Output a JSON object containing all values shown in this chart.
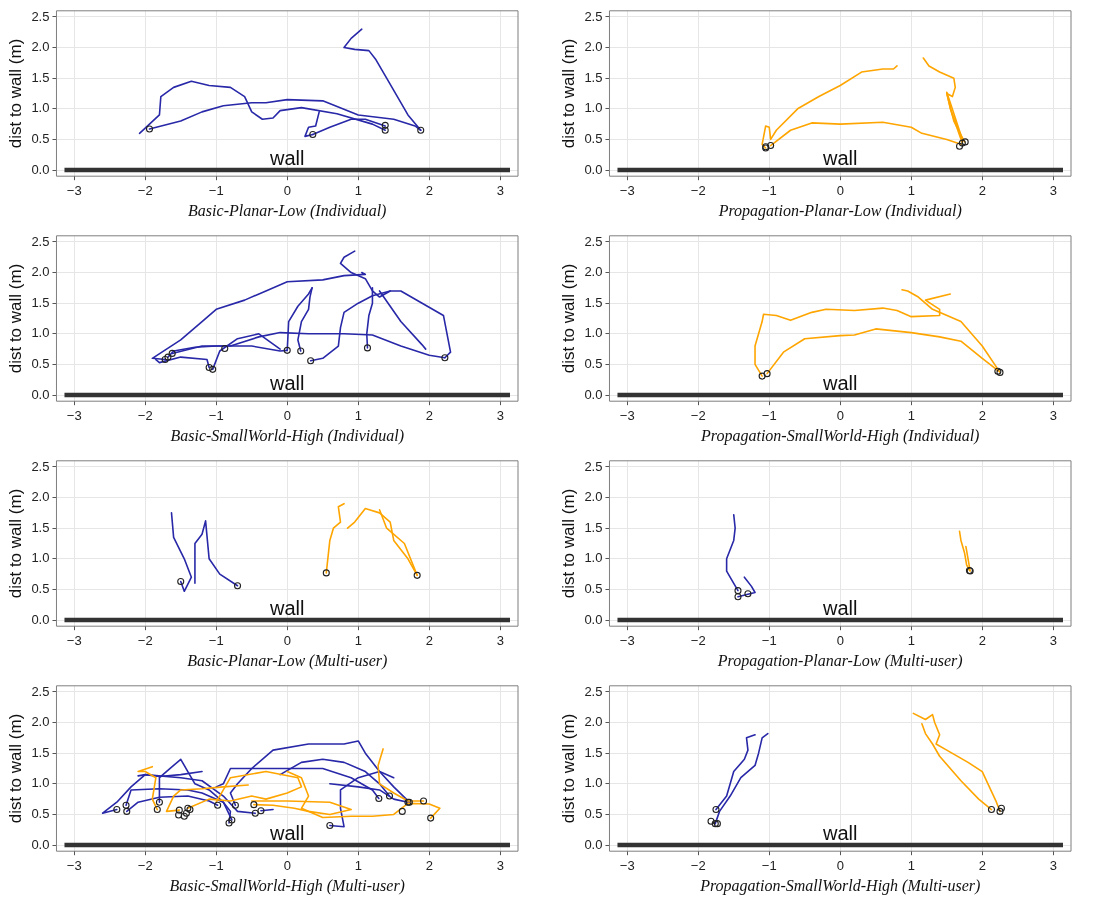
{
  "chart_data": [
    {
      "type": "line",
      "xlabel": "Basic-Planar-Low (Individual)",
      "ylabel": "dist to wall (m)",
      "xlim": [
        -3.25,
        3.25
      ],
      "ylim": [
        -0.1,
        2.6
      ],
      "xticks": [
        {
          "value": -3,
          "label": "−3"
        },
        {
          "value": -2,
          "label": "−2"
        },
        {
          "value": -1,
          "label": "−1"
        },
        0,
        1,
        2,
        3
      ],
      "yticks": [
        {
          "value": 0,
          "label": "0.0"
        },
        0.5,
        {
          "value": 1,
          "label": "1.0"
        },
        1.5,
        {
          "value": 2,
          "label": "2.0"
        },
        2.5
      ],
      "grid": true,
      "legend": false,
      "ref_lines": [
        {
          "axis": "y",
          "value": 0,
          "label": "wall",
          "color": "#333333"
        }
      ],
      "series": [
        {
          "type": "line",
          "color": "#2828a8",
          "x": [
            -2.08,
            -1.8,
            -1.78,
            -1.6,
            -1.35,
            -1.1,
            -0.8,
            -0.6,
            -0.5,
            -0.35,
            -0.2,
            -0.1,
            0.2,
            0.7,
            1.2,
            1.38
          ],
          "values": [
            0.6,
            0.9,
            1.2,
            1.35,
            1.45,
            1.38,
            1.35,
            1.2,
            0.95,
            0.83,
            0.85,
            0.97,
            1.02,
            0.92,
            0.75,
            0.65
          ]
        },
        {
          "type": "line",
          "color": "#2828a8",
          "x": [
            -1.94,
            -1.5,
            -1.2,
            -0.9,
            -0.5,
            -0.3,
            0,
            0.5,
            1.0,
            1.5,
            1.8,
            1.88
          ],
          "values": [
            0.67,
            0.8,
            0.95,
            1.05,
            1.1,
            1.1,
            1.15,
            1.13,
            0.9,
            0.83,
            0.72,
            0.65
          ]
        },
        {
          "type": "line",
          "color": "#2828a8",
          "x": [
            1.88,
            1.7,
            1.5,
            1.4,
            1.25,
            1.15,
            0.95,
            0.8,
            0.9,
            1.05
          ],
          "values": [
            0.65,
            0.9,
            1.3,
            1.5,
            1.8,
            1.95,
            1.97,
            2.0,
            2.15,
            2.3
          ]
        },
        {
          "type": "line",
          "color": "#2828a8",
          "x": [
            0.36,
            0.25,
            0.3,
            0.4,
            0.45
          ],
          "values": [
            0.58,
            0.55,
            0.7,
            0.72,
            0.95
          ]
        },
        {
          "type": "line",
          "color": "#2828a8",
          "x": [
            0.36,
            0.6,
            0.9,
            1.1,
            1.38
          ],
          "values": [
            0.58,
            0.7,
            0.83,
            0.83,
            0.72
          ]
        },
        {
          "type": "scatter",
          "color": "#222222",
          "marker": "circle",
          "x": [
            -1.94,
            0.36,
            1.38,
            1.38,
            1.88
          ],
          "values": [
            0.67,
            0.58,
            0.65,
            0.73,
            0.65
          ]
        }
      ]
    },
    {
      "type": "line",
      "xlabel": "Propagation-Planar-Low (Individual)",
      "ylabel": "dist to wall (m)",
      "xlim": [
        -3.25,
        3.25
      ],
      "ylim": [
        -0.1,
        2.6
      ],
      "xticks": [
        {
          "value": -3,
          "label": "−3"
        },
        {
          "value": -2,
          "label": "−2"
        },
        {
          "value": -1,
          "label": "−1"
        },
        0,
        1,
        2,
        3
      ],
      "yticks": [
        {
          "value": 0,
          "label": "0.0"
        },
        0.5,
        {
          "value": 1,
          "label": "1.0"
        },
        1.5,
        {
          "value": 2,
          "label": "2.0"
        },
        2.5
      ],
      "grid": true,
      "legend": false,
      "ref_lines": [
        {
          "axis": "y",
          "value": 0,
          "label": "wall",
          "color": "#333333"
        }
      ],
      "series": [
        {
          "type": "line",
          "color": "#ffa500",
          "x": [
            -1.05,
            -1.1,
            -1.05,
            -1.0,
            -0.98,
            -0.9,
            -0.6,
            -0.3,
            0,
            0.3,
            0.6,
            0.75,
            0.8
          ],
          "values": [
            0.36,
            0.42,
            0.72,
            0.7,
            0.5,
            0.65,
            1.0,
            1.2,
            1.38,
            1.6,
            1.65,
            1.65,
            1.7
          ]
        },
        {
          "type": "line",
          "color": "#ffa500",
          "x": [
            -0.98,
            -0.7,
            -0.4,
            0,
            0.6,
            1.0,
            1.15,
            1.5,
            1.7
          ],
          "values": [
            0.4,
            0.65,
            0.77,
            0.75,
            0.78,
            0.7,
            0.6,
            0.5,
            0.42
          ]
        },
        {
          "type": "line",
          "color": "#ffa500",
          "x": [
            1.75,
            1.6,
            1.5,
            1.58,
            1.62,
            1.6,
            1.4,
            1.25,
            1.17
          ],
          "values": [
            0.46,
            0.8,
            1.25,
            1.2,
            1.35,
            1.5,
            1.6,
            1.7,
            1.83
          ]
        },
        {
          "type": "line",
          "color": "#ffa500",
          "x": [
            1.72,
            1.55,
            1.5,
            1.55,
            1.72
          ],
          "values": [
            0.44,
            1.0,
            1.27,
            1.1,
            0.5
          ]
        },
        {
          "type": "scatter",
          "color": "#222222",
          "marker": "circle",
          "x": [
            -1.05,
            -1.05,
            -0.98,
            1.68,
            1.72,
            1.76
          ],
          "values": [
            0.36,
            0.38,
            0.4,
            0.39,
            0.44,
            0.46
          ]
        }
      ]
    },
    {
      "type": "line",
      "xlabel": "Basic-SmallWorld-High (Individual)",
      "ylabel": "dist to wall (m)",
      "xlim": [
        -3.25,
        3.25
      ],
      "ylim": [
        -0.1,
        2.6
      ],
      "xticks": [
        {
          "value": -3,
          "label": "−3"
        },
        {
          "value": -2,
          "label": "−2"
        },
        {
          "value": -1,
          "label": "−1"
        },
        0,
        1,
        2,
        3
      ],
      "yticks": [
        {
          "value": 0,
          "label": "0.0"
        },
        0.5,
        {
          "value": 1,
          "label": "1.0"
        },
        1.5,
        {
          "value": 2,
          "label": "2.0"
        },
        2.5
      ],
      "grid": true,
      "legend": false,
      "ref_lines": [
        {
          "axis": "y",
          "value": 0,
          "label": "wall",
          "color": "#333333"
        }
      ],
      "series": [
        {
          "type": "line",
          "color": "#2828a8",
          "x": [
            -1.72,
            -1.9,
            -1.7,
            -1.5,
            -1.2,
            -1.0,
            -0.6,
            -0.3,
            0,
            0.5,
            0.8,
            1.1,
            1.05
          ],
          "values": [
            0.58,
            0.6,
            0.75,
            0.9,
            1.2,
            1.4,
            1.55,
            1.7,
            1.85,
            1.88,
            1.95,
            1.97,
            2.0
          ]
        },
        {
          "type": "line",
          "color": "#2828a8",
          "x": [
            -1.68,
            -1.6,
            -1.3,
            -1.0,
            -0.5,
            -0.1,
            0
          ],
          "values": [
            0.62,
            0.72,
            0.78,
            0.8,
            0.8,
            0.72,
            0.73
          ]
        },
        {
          "type": "line",
          "color": "#2828a8",
          "x": [
            -1.62,
            -1.2,
            -0.8,
            -0.4,
            -0.1,
            0.3,
            0.8,
            1.2,
            1.6,
            2.0,
            2.22
          ],
          "values": [
            0.68,
            0.8,
            0.8,
            0.95,
            1.02,
            1.0,
            1.0,
            0.98,
            0.8,
            0.65,
            0.61
          ]
        },
        {
          "type": "line",
          "color": "#2828a8",
          "x": [
            -1.1,
            -1.13,
            -1.5,
            -1.8,
            -1.85
          ],
          "values": [
            0.45,
            0.58,
            0.62,
            0.53,
            0.58
          ]
        },
        {
          "type": "line",
          "color": "#2828a8",
          "x": [
            -1.05,
            -0.95,
            -0.7,
            -0.4,
            -0.1
          ],
          "values": [
            0.42,
            0.72,
            0.92,
            1.0,
            0.75
          ]
        },
        {
          "type": "line",
          "color": "#2828a8",
          "x": [
            0,
            0.02,
            0.15,
            0.3,
            0.35
          ],
          "values": [
            0.73,
            1.2,
            1.45,
            1.65,
            1.75
          ]
        },
        {
          "type": "line",
          "color": "#2828a8",
          "x": [
            0.19,
            0.15,
            0.2,
            0.3,
            0.32,
            0.35
          ],
          "values": [
            0.72,
            0.9,
            1.2,
            1.4,
            1.6,
            1.75
          ]
        },
        {
          "type": "line",
          "color": "#2828a8",
          "x": [
            0.33,
            0.5,
            0.72,
            0.75,
            0.8,
            1.0,
            1.2,
            1.45
          ],
          "values": [
            0.56,
            0.6,
            0.8,
            1.1,
            1.35,
            1.5,
            1.62,
            1.7
          ]
        },
        {
          "type": "line",
          "color": "#2828a8",
          "x": [
            1.13,
            1.12,
            1.15,
            1.2,
            1.2
          ],
          "values": [
            0.77,
            1.0,
            1.3,
            1.5,
            1.75
          ]
        },
        {
          "type": "line",
          "color": "#2828a8",
          "x": [
            2.22,
            2.3,
            2.2,
            1.9,
            1.6,
            1.45,
            1.3,
            1.2,
            1.1,
            0.9,
            0.75,
            0.8,
            0.95
          ],
          "values": [
            0.61,
            0.7,
            1.3,
            1.5,
            1.7,
            1.7,
            1.6,
            1.7,
            1.9,
            2.0,
            2.15,
            2.25,
            2.35
          ]
        },
        {
          "type": "line",
          "color": "#2828a8",
          "x": [
            1.3,
            1.6,
            1.9,
            1.95
          ],
          "values": [
            1.7,
            1.2,
            0.82,
            0.75
          ]
        },
        {
          "type": "scatter",
          "color": "#222222",
          "marker": "circle",
          "x": [
            -1.72,
            -1.68,
            -1.62,
            -1.1,
            -1.05,
            -0.88,
            0,
            0.19,
            0.33,
            1.13,
            2.22
          ],
          "values": [
            0.58,
            0.62,
            0.68,
            0.45,
            0.42,
            0.76,
            0.73,
            0.72,
            0.56,
            0.77,
            0.61
          ]
        }
      ]
    },
    {
      "type": "line",
      "xlabel": "Propagation-SmallWorld-High (Individual)",
      "ylabel": "dist to wall (m)",
      "xlim": [
        -3.25,
        3.25
      ],
      "ylim": [
        -0.1,
        2.6
      ],
      "xticks": [
        {
          "value": -3,
          "label": "−3"
        },
        {
          "value": -2,
          "label": "−2"
        },
        {
          "value": -1,
          "label": "−1"
        },
        0,
        1,
        2,
        3
      ],
      "yticks": [
        {
          "value": 0,
          "label": "0.0"
        },
        0.5,
        {
          "value": 1,
          "label": "1.0"
        },
        1.5,
        {
          "value": 2,
          "label": "2.0"
        },
        2.5
      ],
      "grid": true,
      "legend": false,
      "ref_lines": [
        {
          "axis": "y",
          "value": 0,
          "label": "wall",
          "color": "#333333"
        }
      ],
      "series": [
        {
          "type": "line",
          "color": "#ffa500",
          "x": [
            -1.1,
            -1.2,
            -1.2,
            -1.15,
            -1.1,
            -1.08,
            -0.9,
            -0.7,
            -0.4,
            -0.2,
            0.2,
            0.6,
            0.8,
            1.0,
            1.4,
            1.4,
            1.2,
            1.55
          ],
          "values": [
            0.31,
            0.5,
            0.8,
            1.0,
            1.2,
            1.32,
            1.3,
            1.22,
            1.35,
            1.4,
            1.38,
            1.42,
            1.38,
            1.28,
            1.3,
            1.4,
            1.55,
            1.65
          ]
        },
        {
          "type": "line",
          "color": "#ffa500",
          "x": [
            -1.03,
            -0.8,
            -0.5,
            0,
            0.2,
            0.5,
            1.0,
            1.4,
            1.7,
            2.0,
            2.2,
            2.22
          ],
          "values": [
            0.35,
            0.7,
            0.92,
            0.97,
            0.98,
            1.08,
            1.02,
            0.95,
            0.88,
            0.6,
            0.42,
            0.39
          ]
        },
        {
          "type": "line",
          "color": "#ffa500",
          "x": [
            2.25,
            2.0,
            1.7,
            1.3,
            1.1,
            0.95,
            0.87
          ],
          "values": [
            0.37,
            0.8,
            1.2,
            1.4,
            1.6,
            1.7,
            1.72
          ]
        },
        {
          "type": "scatter",
          "color": "#222222",
          "marker": "circle",
          "x": [
            -1.1,
            -1.03,
            2.22,
            2.25
          ],
          "values": [
            0.31,
            0.35,
            0.39,
            0.37
          ]
        }
      ]
    },
    {
      "type": "line",
      "xlabel": "Basic-Planar-Low (Multi-user)",
      "ylabel": "dist to wall (m)",
      "xlim": [
        -3.25,
        3.25
      ],
      "ylim": [
        -0.1,
        2.6
      ],
      "xticks": [
        {
          "value": -3,
          "label": "−3"
        },
        {
          "value": -2,
          "label": "−2"
        },
        {
          "value": -1,
          "label": "−1"
        },
        0,
        1,
        2,
        3
      ],
      "yticks": [
        {
          "value": 0,
          "label": "0.0"
        },
        0.5,
        {
          "value": 1,
          "label": "1.0"
        },
        1.5,
        {
          "value": 2,
          "label": "2.0"
        },
        2.5
      ],
      "grid": true,
      "legend": false,
      "ref_lines": [
        {
          "axis": "y",
          "value": 0,
          "label": "wall",
          "color": "#333333"
        }
      ],
      "series": [
        {
          "type": "line",
          "color": "#2828a8",
          "x": [
            -1.5,
            -1.45,
            -1.35,
            -1.45,
            -1.6,
            -1.63
          ],
          "values": [
            0.63,
            0.47,
            0.7,
            1.0,
            1.35,
            1.75
          ]
        },
        {
          "type": "line",
          "color": "#2828a8",
          "x": [
            -0.7,
            -0.95,
            -1.1,
            -1.15,
            -1.2,
            -1.3,
            -1.3
          ],
          "values": [
            0.56,
            0.75,
            1.0,
            1.62,
            1.4,
            1.25,
            0.6
          ]
        },
        {
          "type": "line",
          "color": "#ffa500",
          "x": [
            0.55,
            0.6,
            0.65,
            0.75,
            0.72,
            0.8
          ],
          "values": [
            0.77,
            1.3,
            1.5,
            1.6,
            1.85,
            1.9
          ]
        },
        {
          "type": "line",
          "color": "#ffa500",
          "x": [
            1.83,
            1.7,
            1.5,
            1.45,
            1.3,
            1.1,
            0.95,
            0.85
          ],
          "values": [
            0.73,
            1.0,
            1.3,
            1.6,
            1.75,
            1.82,
            1.6,
            1.5
          ]
        },
        {
          "type": "line",
          "color": "#ffa500",
          "x": [
            1.83,
            1.65,
            1.4,
            1.3
          ],
          "values": [
            0.73,
            1.25,
            1.5,
            1.8
          ]
        },
        {
          "type": "scatter",
          "color": "#222222",
          "marker": "circle",
          "x": [
            -1.5,
            -0.7,
            0.55,
            1.83
          ],
          "values": [
            0.63,
            0.56,
            0.77,
            0.73
          ]
        }
      ]
    },
    {
      "type": "line",
      "xlabel": "Propagation-Planar-Low (Multi-user)",
      "ylabel": "dist to wall (m)",
      "xlim": [
        -3.25,
        3.25
      ],
      "ylim": [
        -0.1,
        2.6
      ],
      "xticks": [
        {
          "value": -3,
          "label": "−3"
        },
        {
          "value": -2,
          "label": "−2"
        },
        {
          "value": -1,
          "label": "−1"
        },
        0,
        1,
        2,
        3
      ],
      "yticks": [
        {
          "value": 0,
          "label": "0.0"
        },
        0.5,
        {
          "value": 1,
          "label": "1.0"
        },
        1.5,
        {
          "value": 2,
          "label": "2.0"
        },
        2.5
      ],
      "grid": true,
      "legend": false,
      "ref_lines": [
        {
          "axis": "y",
          "value": 0,
          "label": "wall",
          "color": "#333333"
        }
      ],
      "series": [
        {
          "type": "line",
          "color": "#2828a8",
          "x": [
            -1.44,
            -1.5,
            -1.6,
            -1.6,
            -1.5,
            -1.48,
            -1.5
          ],
          "values": [
            0.48,
            0.6,
            0.8,
            1.0,
            1.3,
            1.5,
            1.72
          ]
        },
        {
          "type": "line",
          "color": "#2828a8",
          "x": [
            -1.44,
            -1.3,
            -1.2,
            -1.25,
            -1.35
          ],
          "values": [
            0.38,
            0.42,
            0.45,
            0.55,
            0.7
          ]
        },
        {
          "type": "line",
          "color": "#ffa500",
          "x": [
            1.82,
            1.78,
            1.75,
            1.7,
            1.68
          ],
          "values": [
            0.81,
            0.9,
            1.1,
            1.3,
            1.45
          ]
        },
        {
          "type": "line",
          "color": "#ffa500",
          "x": [
            1.83,
            1.8,
            1.77
          ],
          "values": [
            0.8,
            1.0,
            1.2
          ]
        },
        {
          "type": "scatter",
          "color": "#222222",
          "marker": "circle",
          "x": [
            -1.44,
            -1.44,
            -1.3,
            1.82,
            1.83
          ],
          "values": [
            0.48,
            0.38,
            0.43,
            0.81,
            0.8
          ]
        }
      ]
    },
    {
      "type": "line",
      "xlabel": "Basic-SmallWorld-High (Multi-user)",
      "ylabel": "dist to wall (m)",
      "xlim": [
        -3.25,
        3.25
      ],
      "ylim": [
        -0.1,
        2.6
      ],
      "xticks": [
        {
          "value": -3,
          "label": "−3"
        },
        {
          "value": -2,
          "label": "−2"
        },
        {
          "value": -1,
          "label": "−1"
        },
        0,
        1,
        2,
        3
      ],
      "yticks": [
        {
          "value": 0,
          "label": "0.0"
        },
        0.5,
        {
          "value": 1,
          "label": "1.0"
        },
        1.5,
        {
          "value": 2,
          "label": "2.0"
        },
        2.5
      ],
      "grid": true,
      "legend": false,
      "ref_lines": [
        {
          "axis": "y",
          "value": 0,
          "label": "wall",
          "color": "#333333"
        }
      ],
      "series": [
        {
          "type": "line",
          "color": "#ffa500",
          "x": [
            -1.83,
            -1.9,
            -1.85,
            -2.0,
            -2.1,
            -1.9
          ],
          "values": [
            0.58,
            0.75,
            1.1,
            1.2,
            1.2,
            1.28
          ]
        },
        {
          "type": "line",
          "color": "#ffa500",
          "x": [
            -1.52,
            -1.7,
            -1.6,
            -1.5,
            -1.2,
            -0.9,
            -0.55
          ],
          "values": [
            0.57,
            0.55,
            0.8,
            0.9,
            0.92,
            0.95,
            0.98
          ]
        },
        {
          "type": "line",
          "color": "#ffa500",
          "x": [
            -1.4,
            -1.1,
            -0.8,
            -0.5,
            -0.3,
            0.0,
            0.2,
            0.15,
            -0.3,
            -0.8,
            -0.9,
            -1.0
          ],
          "values": [
            0.6,
            0.75,
            0.72,
            0.8,
            0.75,
            0.85,
            0.95,
            1.1,
            1.2,
            1.1,
            0.9,
            0.7
          ]
        },
        {
          "type": "line",
          "color": "#ffa500",
          "x": [
            -0.47,
            -0.2,
            0.1,
            0.3,
            0.6,
            0.9,
            0.6,
            0.0,
            -0.5
          ],
          "values": [
            0.66,
            0.65,
            0.6,
            0.55,
            0.5,
            0.58,
            0.7,
            0.72,
            0.72
          ]
        },
        {
          "type": "line",
          "color": "#ffa500",
          "x": [
            1.92,
            1.7,
            1.5,
            1.3,
            1.28,
            1.35
          ],
          "values": [
            0.72,
            0.72,
            0.85,
            1.0,
            1.3,
            1.57
          ]
        },
        {
          "type": "line",
          "color": "#ffa500",
          "x": [
            2.02,
            2.15,
            2.0,
            1.7,
            1.5,
            1.2,
            0.9,
            0.5,
            0.2,
            0.3,
            0.2,
            0.0
          ],
          "values": [
            0.44,
            0.6,
            0.67,
            0.68,
            0.5,
            0.47,
            0.47,
            0.45,
            0.6,
            0.8,
            1.1,
            1.2
          ]
        },
        {
          "type": "line",
          "color": "#2828a8",
          "x": [
            -2.4,
            -2.6,
            -2.4,
            -2.2,
            -2.0,
            -1.8,
            -1.5,
            -1.2
          ],
          "values": [
            0.58,
            0.52,
            0.7,
            0.95,
            1.15,
            1.12,
            1.15,
            1.2
          ]
        },
        {
          "type": "line",
          "color": "#2828a8",
          "x": [
            -2.27,
            -2.2,
            -1.8,
            -1.4,
            -1.2,
            -0.9,
            -0.8,
            -0.82
          ],
          "values": [
            0.65,
            0.9,
            0.92,
            0.9,
            0.85,
            0.7,
            0.55,
            0.36
          ]
        },
        {
          "type": "line",
          "color": "#2828a8",
          "x": [
            -2.26,
            -2.1,
            -1.8,
            -1.4,
            -1.1,
            -0.98
          ],
          "values": [
            0.55,
            0.7,
            0.78,
            0.8,
            0.72,
            0.65
          ]
        },
        {
          "type": "line",
          "color": "#2828a8",
          "x": [
            -1.8,
            -1.8,
            -1.6,
            -1.5,
            -1.4,
            -1.3,
            -1.1,
            -0.9,
            -0.78
          ],
          "values": [
            0.7,
            1.1,
            1.3,
            1.4,
            1.2,
            1.0,
            0.9,
            0.7,
            0.41
          ]
        },
        {
          "type": "line",
          "color": "#2828a8",
          "x": [
            -0.73,
            -0.8,
            -0.7,
            -0.5,
            -0.2,
            0.3,
            0.8,
            1.0,
            1.1,
            1.3,
            1.5,
            1.72
          ],
          "values": [
            0.65,
            0.85,
            1.0,
            1.25,
            1.55,
            1.65,
            1.65,
            1.7,
            1.5,
            1.2,
            0.95,
            0.7
          ]
        },
        {
          "type": "line",
          "color": "#2828a8",
          "x": [
            -0.45,
            -0.7,
            -0.9,
            -1.2,
            -1.5,
            -2.0,
            -2.1
          ],
          "values": [
            0.52,
            0.55,
            0.8,
            1.05,
            1.1,
            1.15,
            1.13
          ]
        },
        {
          "type": "line",
          "color": "#2828a8",
          "x": [
            -0.37,
            -0.2
          ],
          "values": [
            0.56,
            0.58
          ]
        },
        {
          "type": "line",
          "color": "#2828a8",
          "x": [
            0.6,
            0.8,
            0.75,
            0.75,
            1.0,
            1.3,
            1.5
          ],
          "values": [
            0.32,
            0.3,
            0.6,
            0.9,
            1.1,
            1.2,
            1.1
          ]
        },
        {
          "type": "line",
          "color": "#2828a8",
          "x": [
            1.29,
            1.2,
            0.9,
            0.5,
            -0.8,
            -0.9,
            -1.0
          ],
          "values": [
            0.76,
            0.9,
            1.1,
            1.25,
            1.25,
            1.0,
            0.95
          ]
        },
        {
          "type": "line",
          "color": "#2828a8",
          "x": [
            1.44,
            1.3,
            1.1,
            0.8,
            0.5,
            0.2,
            -0.1
          ],
          "values": [
            0.8,
            1.0,
            1.2,
            1.35,
            1.4,
            1.35,
            1.15
          ]
        },
        {
          "type": "line",
          "color": "#2828a8",
          "x": [
            1.7,
            1.5,
            1.3,
            1.0,
            0.6
          ],
          "values": [
            0.7,
            0.75,
            0.9,
            0.95,
            1.0
          ]
        },
        {
          "type": "scatter",
          "color": "#222222",
          "marker": "circle",
          "x": [
            -2.4,
            -2.27,
            -2.26,
            -1.8,
            -0.98,
            -0.82,
            -0.78,
            -0.73,
            -0.45,
            -0.37,
            0.6,
            1.29,
            1.44,
            1.7,
            1.72,
            -1.83,
            -1.52,
            -1.53,
            -1.45,
            -1.42,
            -1.4,
            -1.37,
            -0.47,
            1.62,
            1.92,
            2.02
          ],
          "values": [
            0.58,
            0.65,
            0.55,
            0.7,
            0.65,
            0.36,
            0.41,
            0.65,
            0.52,
            0.56,
            0.32,
            0.76,
            0.8,
            0.7,
            0.7,
            0.58,
            0.57,
            0.49,
            0.47,
            0.52,
            0.6,
            0.58,
            0.66,
            0.55,
            0.72,
            0.44
          ]
        }
      ]
    },
    {
      "type": "line",
      "xlabel": "Propagation-SmallWorld-High (Multi-user)",
      "ylabel": "dist to wall (m)",
      "xlim": [
        -3.25,
        3.25
      ],
      "ylim": [
        -0.1,
        2.6
      ],
      "xticks": [
        {
          "value": -3,
          "label": "−3"
        },
        {
          "value": -2,
          "label": "−2"
        },
        {
          "value": -1,
          "label": "−1"
        },
        0,
        1,
        2,
        3
      ],
      "yticks": [
        {
          "value": 0,
          "label": "0.0"
        },
        0.5,
        {
          "value": 1,
          "label": "1.0"
        },
        1.5,
        {
          "value": 2,
          "label": "2.0"
        },
        2.5
      ],
      "grid": true,
      "legend": false,
      "ref_lines": [
        {
          "axis": "y",
          "value": 0,
          "label": "wall",
          "color": "#333333"
        }
      ],
      "series": [
        {
          "type": "line",
          "color": "#2828a8",
          "x": [
            -1.75,
            -1.6,
            -1.55,
            -1.5,
            -1.35,
            -1.3,
            -1.32,
            -1.2
          ],
          "values": [
            0.58,
            0.8,
            1.0,
            1.2,
            1.4,
            1.55,
            1.75,
            1.8
          ]
        },
        {
          "type": "line",
          "color": "#2828a8",
          "x": [
            -1.76,
            -1.7,
            -1.55,
            -1.4,
            -1.2,
            -1.15,
            -1.1,
            -1.02
          ],
          "values": [
            0.35,
            0.55,
            0.8,
            1.1,
            1.3,
            1.5,
            1.75,
            1.82
          ]
        },
        {
          "type": "line",
          "color": "#ffa500",
          "x": [
            2.13,
            1.95,
            1.7,
            1.4,
            1.3,
            1.2,
            1.15
          ],
          "values": [
            0.58,
            0.75,
            1.05,
            1.45,
            1.65,
            1.82,
            1.98
          ]
        },
        {
          "type": "line",
          "color": "#ffa500",
          "x": [
            2.25,
            2.2,
            2.0,
            1.8,
            1.5,
            1.35,
            1.4,
            1.33,
            1.3,
            1.2,
            1.03
          ],
          "values": [
            0.55,
            0.7,
            1.2,
            1.35,
            1.55,
            1.65,
            1.8,
            2.0,
            2.13,
            2.05,
            2.15
          ]
        },
        {
          "type": "scatter",
          "color": "#222222",
          "marker": "circle",
          "x": [
            -1.75,
            -1.82,
            -1.76,
            -1.73,
            2.13,
            2.25,
            2.27
          ],
          "values": [
            0.58,
            0.39,
            0.35,
            0.35,
            0.58,
            0.55,
            0.6
          ]
        }
      ]
    }
  ]
}
